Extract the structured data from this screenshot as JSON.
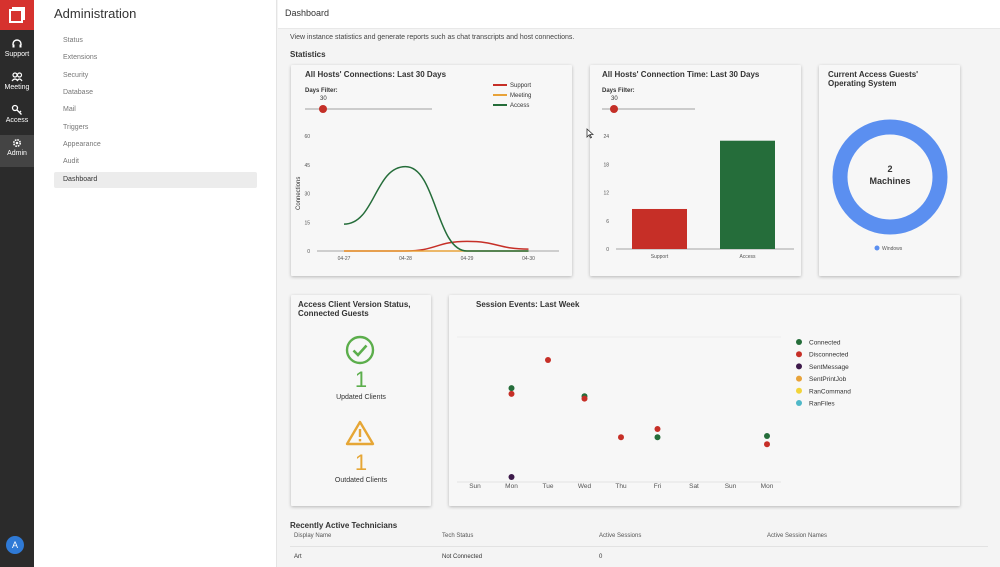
{
  "rail": {
    "items": [
      {
        "label": "Support",
        "icon": "headset-icon"
      },
      {
        "label": "Meeting",
        "icon": "people-icon"
      },
      {
        "label": "Access",
        "icon": "key-icon"
      },
      {
        "label": "Admin",
        "icon": "gear-icon"
      }
    ],
    "avatar_initial": "A"
  },
  "sidebar": {
    "title": "Administration",
    "items": [
      "Status",
      "Extensions",
      "Security",
      "Database",
      "Mail",
      "Triggers",
      "Appearance",
      "Audit",
      "Dashboard"
    ],
    "active": "Dashboard"
  },
  "header": {
    "breadcrumb": "Dashboard"
  },
  "intro": "View instance statistics and generate reports such as chat transcripts and host connections.",
  "statistics_heading": "Statistics",
  "connections_card": {
    "title": "All Hosts' Connections: Last 30 Days",
    "filter_label": "Days Filter:",
    "filter_value": "30",
    "ylabel": "Connections",
    "legend": [
      "Support",
      "Meeting",
      "Access"
    ]
  },
  "time_card": {
    "title": "All Hosts' Connection Time: Last 30 Days",
    "filter_label": "Days Filter:",
    "filter_value": "30"
  },
  "os_card": {
    "title_line1": "Current Access Guests'",
    "title_line2": "Operating System",
    "center_count": "2",
    "center_label": "Machines",
    "legend": "Windows"
  },
  "version_card": {
    "title_line1": "Access Client Version Status,",
    "title_line2": "Connected Guests",
    "updated_count": "1",
    "updated_label": "Updated Clients",
    "outdated_count": "1",
    "outdated_label": "Outdated Clients"
  },
  "session_card": {
    "title": "Session Events: Last Week",
    "legend": [
      "Connected",
      "Disconnected",
      "SentMessage",
      "SentPrintJob",
      "RanCommand",
      "RanFiles"
    ]
  },
  "technicians": {
    "heading": "Recently Active Technicians",
    "columns": [
      "Display Name",
      "Tech Status",
      "Active Sessions",
      "Active Session Names"
    ],
    "rows": [
      [
        "Art",
        "Not Connected",
        "0",
        ""
      ]
    ]
  },
  "colors": {
    "support": "#c62f27",
    "meeting": "#e8a33a",
    "access": "#256d3a",
    "windows": "#5b8ff0",
    "sentmessage": "#3d1a4a",
    "ranfiles": "#4fb8c8",
    "ok": "#5cae4c",
    "warn": "#e6a635"
  },
  "chart_data": [
    {
      "type": "line",
      "title": "All Hosts' Connections: Last 30 Days",
      "ylabel": "Connections",
      "categories": [
        "04-27",
        "04-28",
        "04-29",
        "04-30"
      ],
      "ylim": [
        0,
        60
      ],
      "yticks": [
        0,
        15,
        30,
        45,
        60
      ],
      "series": [
        {
          "name": "Support",
          "values": [
            0,
            0,
            5,
            1
          ]
        },
        {
          "name": "Meeting",
          "values": [
            0,
            0,
            0,
            0
          ]
        },
        {
          "name": "Access",
          "values": [
            14,
            44,
            0,
            0
          ]
        }
      ]
    },
    {
      "type": "bar",
      "title": "All Hosts' Connection Time: Last 30 Days",
      "categories": [
        "Support",
        "Access"
      ],
      "values": [
        8.5,
        23
      ],
      "ylim": [
        0,
        24
      ],
      "yticks": [
        0,
        6,
        12,
        18,
        24
      ]
    },
    {
      "type": "pie",
      "title": "Current Access Guests' Operating System",
      "labels": [
        "Windows"
      ],
      "values": [
        2
      ]
    },
    {
      "type": "scatter",
      "title": "Session Events: Last Week",
      "categories": [
        "Sun",
        "Mon",
        "Tue",
        "Wed",
        "Thu",
        "Fri",
        "Sat",
        "Sun",
        "Mon"
      ],
      "series": [
        {
          "name": "Connected",
          "points": [
            [
              1,
              0.76
            ],
            [
              3,
              0.69
            ],
            [
              5,
              0.34
            ],
            [
              8,
              0.35
            ]
          ]
        },
        {
          "name": "Disconnected",
          "points": [
            [
              1,
              0.71
            ],
            [
              2,
              1.0
            ],
            [
              3,
              0.67
            ],
            [
              4,
              0.34
            ],
            [
              5,
              0.41
            ],
            [
              8,
              0.28
            ]
          ]
        },
        {
          "name": "SentMessage",
          "points": [
            [
              1,
              0.0
            ]
          ]
        },
        {
          "name": "SentPrintJob",
          "points": []
        },
        {
          "name": "RanCommand",
          "points": []
        },
        {
          "name": "RanFiles",
          "points": []
        }
      ]
    }
  ]
}
